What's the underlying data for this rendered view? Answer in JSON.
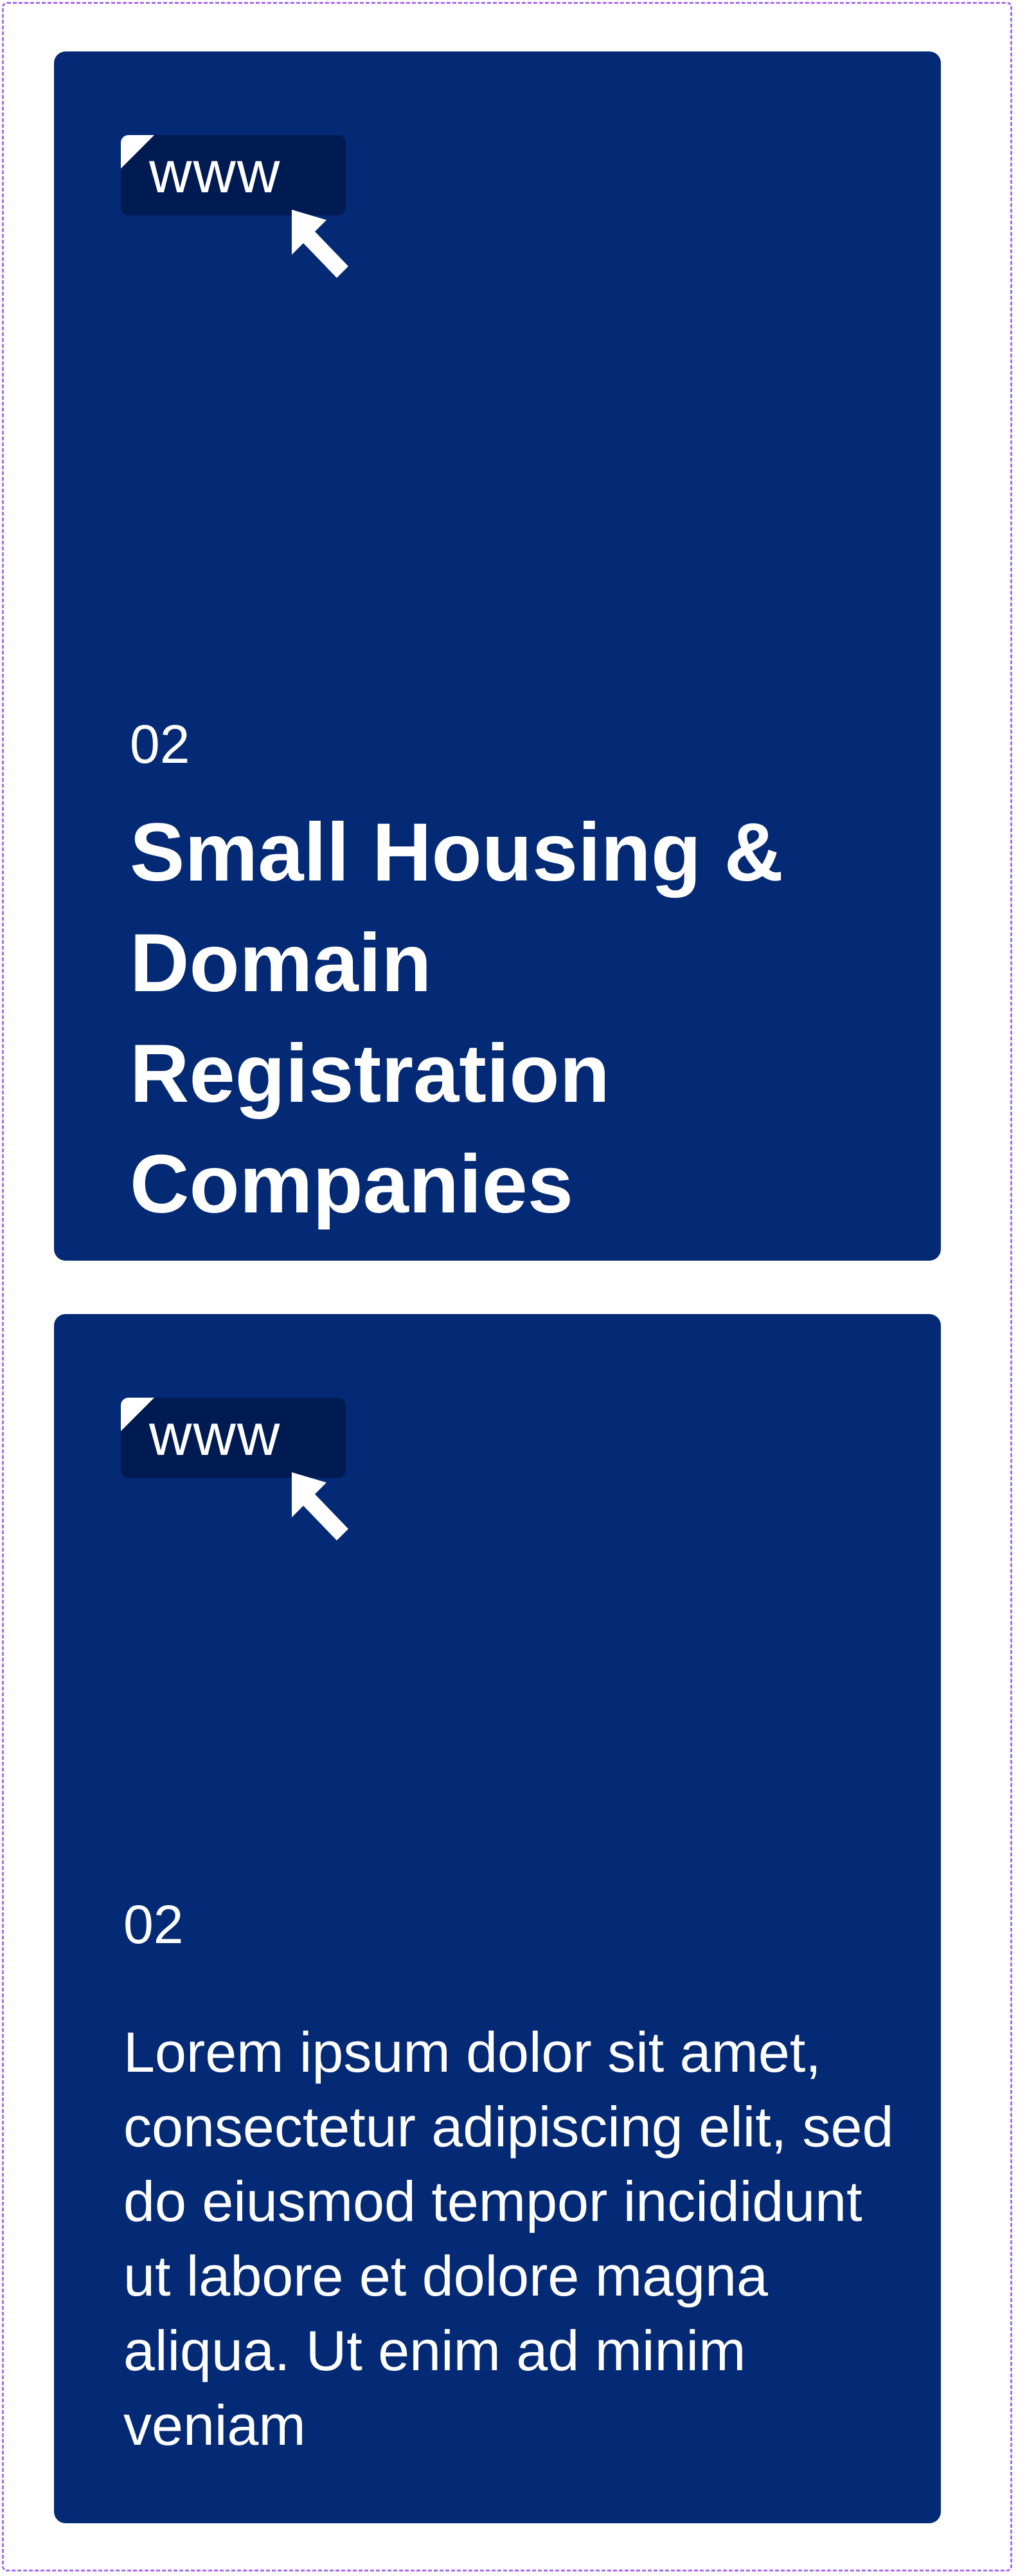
{
  "cards": [
    {
      "icon": "www-cursor-icon",
      "icon_text": "www",
      "number": "02",
      "title": "Small Housing & Domain Registration Companies"
    },
    {
      "icon": "www-cursor-icon",
      "icon_text": "www",
      "number": "02",
      "body": "Lorem ipsum dolor sit amet, consectetur adipiscing elit, sed do eiusmod tempor incididunt ut labore et dolore magna aliqua. Ut enim ad minim veniam"
    }
  ],
  "colors": {
    "card_background": "#042a75",
    "badge_background": "#001b52",
    "frame_border": "#a56cf0",
    "text": "#ffffff"
  }
}
